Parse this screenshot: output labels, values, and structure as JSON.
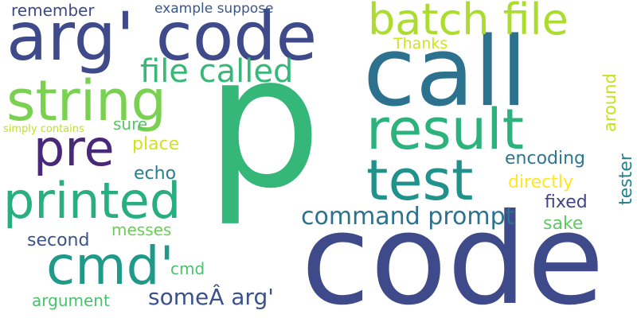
{
  "words": {
    "p": {
      "text": "p",
      "color": "#35b779"
    },
    "code_big": {
      "text": "code",
      "color": "#3e4a89"
    },
    "call": {
      "text": "call",
      "color": "#2c728e"
    },
    "arg_code": {
      "text": "arg' code",
      "color": "#3e4a89"
    },
    "batch_file": {
      "text": "batch file",
      "color": "#addc30"
    },
    "string": {
      "text": "string",
      "color": "#7ad151"
    },
    "result": {
      "text": "result",
      "color": "#2db27d"
    },
    "test": {
      "text": "test",
      "color": "#21918c"
    },
    "pre": {
      "text": "pre",
      "color": "#482878"
    },
    "printed": {
      "text": "printed",
      "color": "#29af7f"
    },
    "cmd_quote": {
      "text": "cmd'",
      "color": "#1f9a8a"
    },
    "file_called": {
      "text": "file called",
      "color": "#37b878"
    },
    "command_prompt": {
      "text": "command prompt",
      "color": "#2c728e"
    },
    "some_arg": {
      "text": "someÂ arg'",
      "color": "#3b518b"
    },
    "remember": {
      "text": "remember",
      "color": "#3e4989"
    },
    "example_suppose": {
      "text": "example suppose",
      "color": "#38588c"
    },
    "thanks": {
      "text": "Thanks",
      "color": "#d2e21b"
    },
    "simply_contains": {
      "text": "simply contains",
      "color": "#c2df23"
    },
    "sure": {
      "text": "sure",
      "color": "#56c667"
    },
    "place": {
      "text": "place",
      "color": "#d5e21a"
    },
    "echo": {
      "text": "echo",
      "color": "#287d8e"
    },
    "encoding": {
      "text": "encoding",
      "color": "#2a788e"
    },
    "directly": {
      "text": "directly",
      "color": "#fde725"
    },
    "fixed": {
      "text": "fixed",
      "color": "#414487"
    },
    "sake": {
      "text": "sake",
      "color": "#5ec962"
    },
    "second": {
      "text": "second",
      "color": "#3b528b"
    },
    "messes": {
      "text": "messes",
      "color": "#6ccd5a"
    },
    "cmd_small": {
      "text": "cmd",
      "color": "#4ac16d"
    },
    "argument": {
      "text": "argument",
      "color": "#4ac16d"
    },
    "around": {
      "text": "around",
      "color": "#c8e020"
    },
    "tester": {
      "text": "tester",
      "color": "#26828e"
    }
  }
}
